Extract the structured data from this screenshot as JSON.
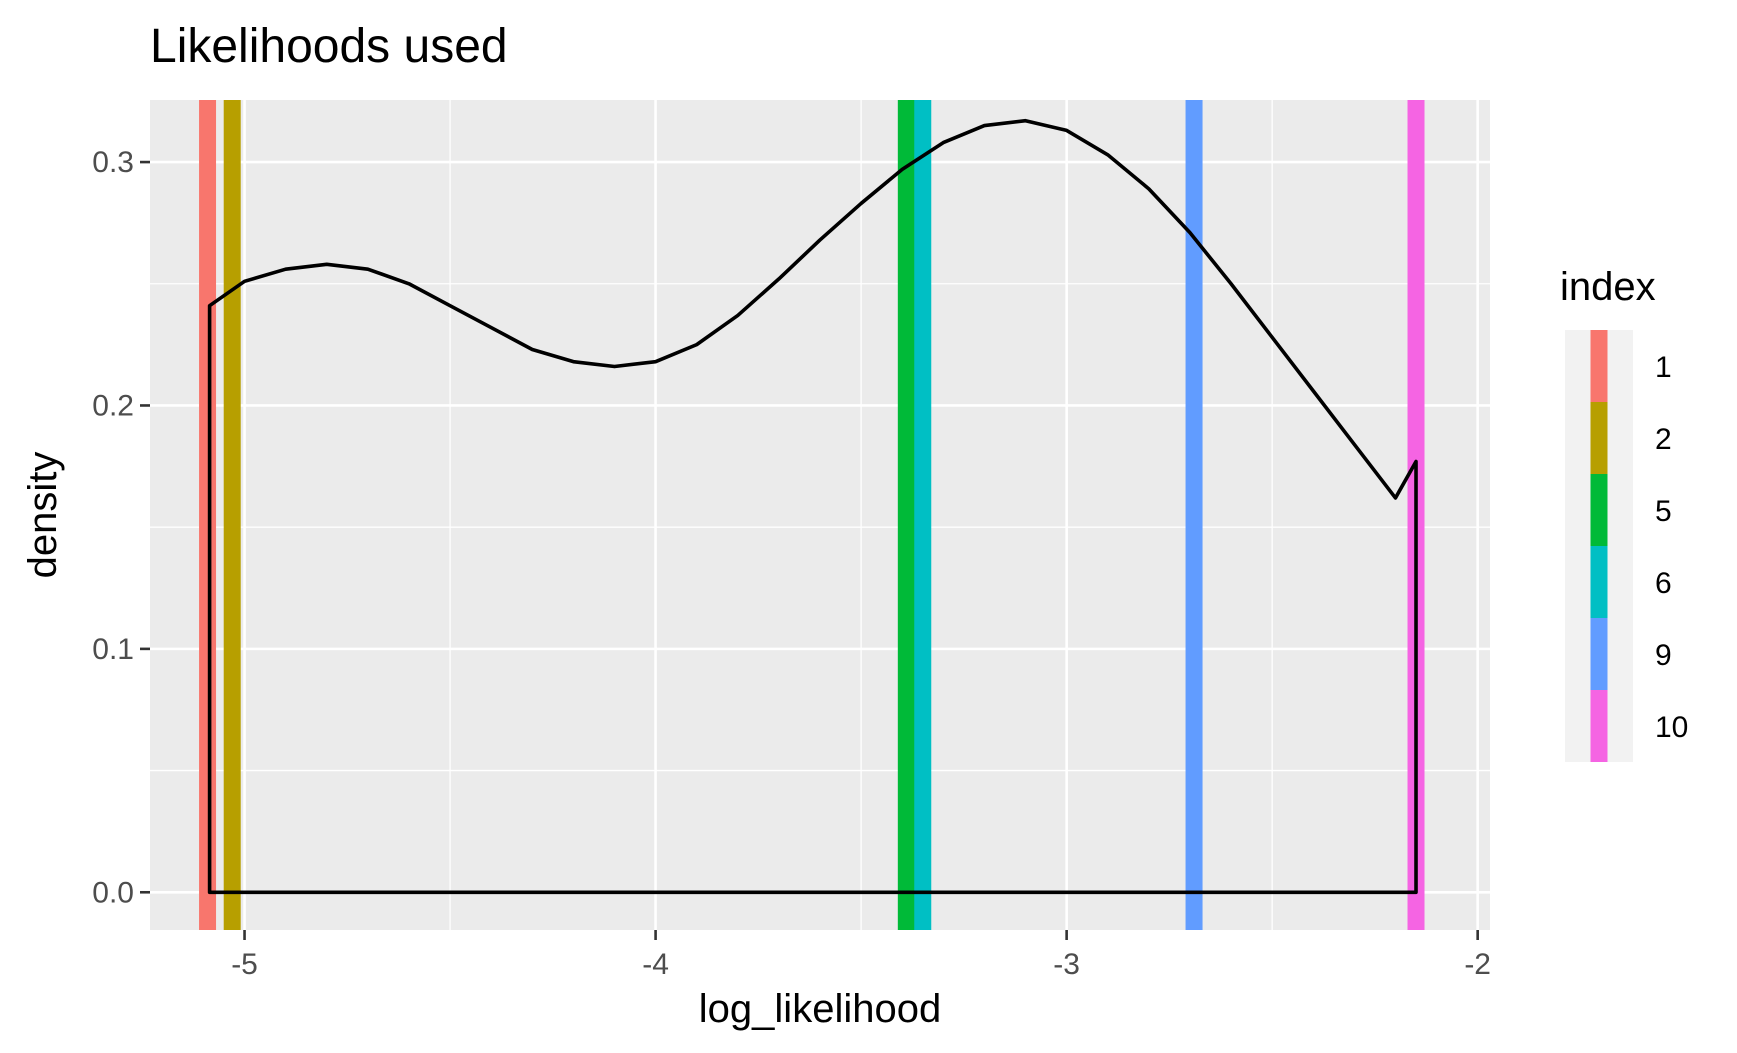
{
  "chart_data": {
    "type": "density",
    "title": "Likelihoods used",
    "xlabel": "log_likelihood",
    "ylabel": "density",
    "xlim": [
      -5.23,
      -1.97
    ],
    "ylim": [
      -0.0155,
      0.3255
    ],
    "x_ticks": [
      -5,
      -4,
      -3,
      -2
    ],
    "x_tick_labels": [
      "-5",
      "-4",
      "-3",
      "-2"
    ],
    "x_minor_ticks": [
      -4.5,
      -3.5,
      -2.5
    ],
    "y_ticks": [
      0.0,
      0.1,
      0.2,
      0.3
    ],
    "y_tick_labels": [
      "0.0",
      "0.1",
      "0.2",
      "0.3"
    ],
    "y_minor_ticks": [
      0.05,
      0.15,
      0.25
    ],
    "grid": true,
    "legend": {
      "title": "index",
      "position": "right",
      "entries": [
        {
          "label": "1",
          "color": "#F8766D"
        },
        {
          "label": "2",
          "color": "#B79F00"
        },
        {
          "label": "5",
          "color": "#00BA38"
        },
        {
          "label": "6",
          "color": "#00BFC4"
        },
        {
          "label": "9",
          "color": "#619CFF"
        },
        {
          "label": "10",
          "color": "#F564E3"
        }
      ]
    },
    "vlines": [
      {
        "index": "1",
        "x": -5.09,
        "color": "#F8766D"
      },
      {
        "index": "2",
        "x": -5.03,
        "color": "#B79F00"
      },
      {
        "index": "5",
        "x": -3.39,
        "color": "#00BA38"
      },
      {
        "index": "6",
        "x": -3.35,
        "color": "#00BFC4"
      },
      {
        "index": "9",
        "x": -2.69,
        "color": "#619CFF"
      },
      {
        "index": "10",
        "x": -2.15,
        "color": "#F564E3"
      }
    ],
    "density_curve": {
      "color": "#000000",
      "x": [
        -5.085,
        -5.0,
        -4.9,
        -4.8,
        -4.7,
        -4.6,
        -4.5,
        -4.4,
        -4.3,
        -4.2,
        -4.1,
        -4.0,
        -3.9,
        -3.8,
        -3.7,
        -3.6,
        -3.5,
        -3.4,
        -3.3,
        -3.2,
        -3.1,
        -3.0,
        -2.9,
        -2.8,
        -2.7,
        -2.6,
        -2.5,
        -2.4,
        -2.3,
        -2.2,
        -2.15
      ],
      "y": [
        0.241,
        0.251,
        0.256,
        0.258,
        0.256,
        0.25,
        0.241,
        0.232,
        0.223,
        0.218,
        0.216,
        0.218,
        0.225,
        0.237,
        0.252,
        0.268,
        0.283,
        0.297,
        0.308,
        0.315,
        0.317,
        0.313,
        0.303,
        0.289,
        0.271,
        0.25,
        0.228,
        0.206,
        0.184,
        0.162,
        0.177
      ],
      "baseline": 0.0
    }
  }
}
